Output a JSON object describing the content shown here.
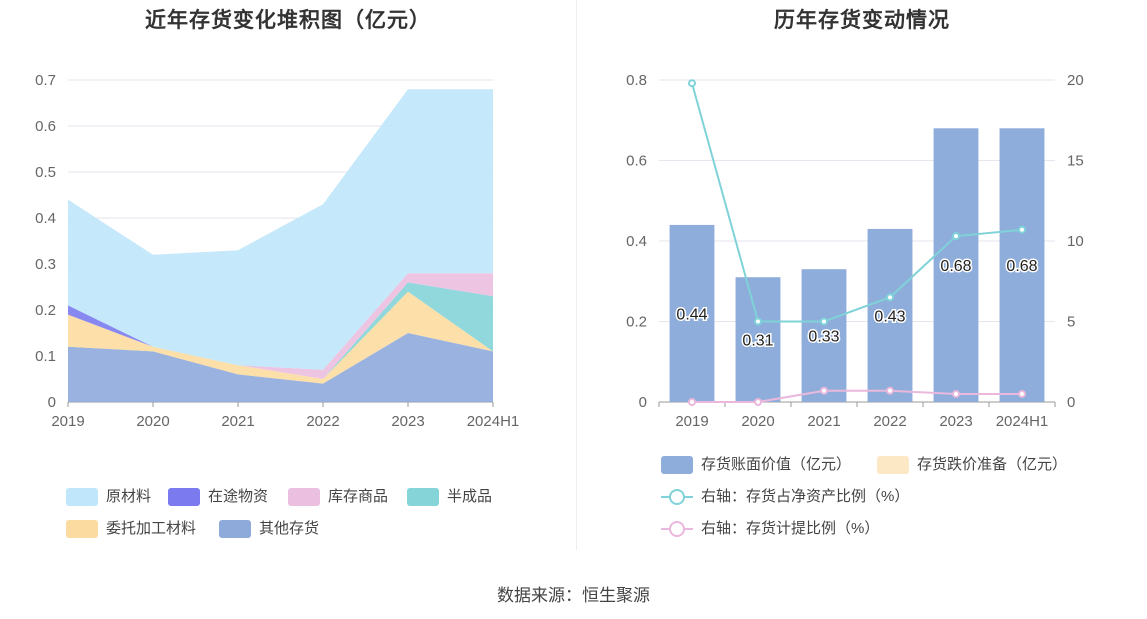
{
  "left_chart": {
    "title": "近年存货变化堆积图（亿元）",
    "chart_data": {
      "type": "area",
      "stacked": true,
      "categories": [
        "2019",
        "2020",
        "2021",
        "2022",
        "2023",
        "2024H1"
      ],
      "ylim": [
        0,
        0.7
      ],
      "yticks": [
        "0",
        "0.1",
        "0.2",
        "0.3",
        "0.4",
        "0.5",
        "0.6",
        "0.7"
      ],
      "grid": true,
      "legend_position": "bottom",
      "series": [
        {
          "name": "其他存货",
          "color": "#8eaadb",
          "values": [
            0.12,
            0.11,
            0.06,
            0.04,
            0.15,
            0.11
          ]
        },
        {
          "name": "委托加工材料",
          "color": "#fcdba0",
          "values": [
            0.07,
            0.01,
            0.02,
            0.01,
            0.09,
            0.0
          ]
        },
        {
          "name": "半成品",
          "color": "#84d4d8",
          "values": [
            0.0,
            0.0,
            0.0,
            0.0,
            0.02,
            0.12
          ]
        },
        {
          "name": "库存商品",
          "color": "#ebbfe0",
          "values": [
            0.0,
            0.0,
            0.0,
            0.02,
            0.02,
            0.05
          ]
        },
        {
          "name": "在途物资",
          "color": "#7b7bef",
          "values": [
            0.02,
            0.0,
            0.0,
            0.0,
            0.0,
            0.0
          ]
        },
        {
          "name": "原材料",
          "color": "#bfe6fb",
          "values": [
            0.23,
            0.2,
            0.25,
            0.36,
            0.4,
            0.4
          ]
        }
      ],
      "legend_order": [
        "原材料",
        "在途物资",
        "库存商品",
        "半成品",
        "委托加工材料",
        "其他存货"
      ]
    }
  },
  "right_chart": {
    "title": "历年存货变动情况",
    "chart_data": {
      "type": "bar",
      "categories": [
        "2019",
        "2020",
        "2021",
        "2022",
        "2023",
        "2024H1"
      ],
      "ylim": [
        0,
        0.8
      ],
      "yticks": [
        "0",
        "0.2",
        "0.4",
        "0.6",
        "0.8"
      ],
      "y2lim": [
        0,
        20
      ],
      "y2ticks": [
        "0",
        "5",
        "10",
        "15",
        "20"
      ],
      "grid": true,
      "legend_position": "bottom",
      "bars": [
        {
          "name": "存货账面价值（亿元）",
          "color": "#8eaddb",
          "values": [
            0.44,
            0.31,
            0.33,
            0.43,
            0.68,
            0.68
          ],
          "labels": [
            "0.44",
            "0.31",
            "0.33",
            "0.43",
            "0.68",
            "0.68"
          ]
        },
        {
          "name": "存货跌价准备（亿元）",
          "color": "#fde8c6",
          "values": [
            0,
            0,
            0,
            0,
            0,
            0
          ]
        }
      ],
      "lines": [
        {
          "name": "右轴：存货占净资产比例（%）",
          "color": "#7fd3d8",
          "axis": "right",
          "values": [
            19.8,
            5.0,
            5.0,
            6.5,
            10.3,
            10.7
          ]
        },
        {
          "name": "右轴：存货计提比例（%）",
          "color": "#eab8dc",
          "axis": "right",
          "values": [
            0.0,
            0.0,
            0.7,
            0.7,
            0.5,
            0.5
          ]
        }
      ]
    }
  },
  "source": "数据来源：恒生聚源"
}
